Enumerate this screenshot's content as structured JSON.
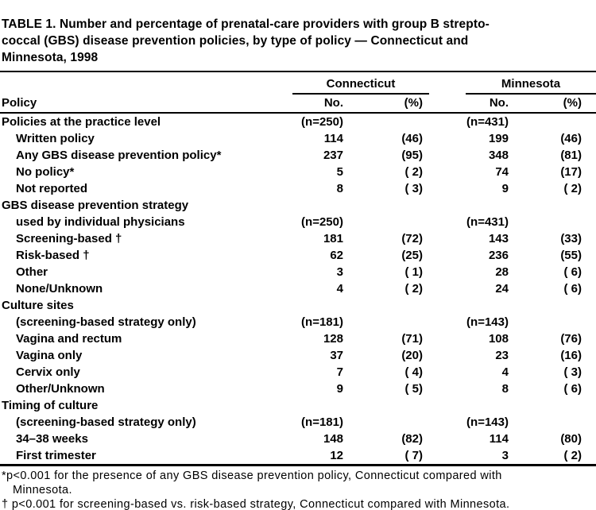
{
  "page": {
    "background": "#ffffff",
    "text_color": "#000000",
    "rule_color": "#000000"
  },
  "table": {
    "title_lines": [
      "TABLE 1. Number and percentage of prenatal-care providers with group B strepto-",
      "coccal (GBS) disease prevention policies, by type of policy — Connecticut and",
      "Minnesota, 1998"
    ],
    "column_groups": {
      "connecticut": "Connecticut",
      "minnesota": "Minnesota"
    },
    "header": {
      "policy": "Policy",
      "no": "No.",
      "pct": "(%)"
    },
    "rows": [
      {
        "label": "Policies at the practice level",
        "indent": false,
        "ct_no": "(n=250)",
        "ct_pct": "",
        "mn_no": "(n=431)",
        "mn_pct": ""
      },
      {
        "label": "Written policy",
        "indent": true,
        "ct_no": "114",
        "ct_pct": "(46)",
        "mn_no": "199",
        "mn_pct": "(46)"
      },
      {
        "label": "Any GBS disease prevention policy*",
        "indent": true,
        "ct_no": "237",
        "ct_pct": "(95)",
        "mn_no": "348",
        "mn_pct": "(81)"
      },
      {
        "label": "No policy*",
        "indent": true,
        "ct_no": "5",
        "ct_pct": "( 2)",
        "mn_no": "74",
        "mn_pct": "(17)"
      },
      {
        "label": "Not reported",
        "indent": true,
        "ct_no": "8",
        "ct_pct": "( 3)",
        "mn_no": "9",
        "mn_pct": "( 2)"
      },
      {
        "label": "GBS disease prevention strategy",
        "indent": false,
        "ct_no": "",
        "ct_pct": "",
        "mn_no": "",
        "mn_pct": ""
      },
      {
        "label": "used by individual physicians",
        "indent": true,
        "ct_no": "(n=250)",
        "ct_pct": "",
        "mn_no": "(n=431)",
        "mn_pct": ""
      },
      {
        "label": "Screening-based †",
        "indent": true,
        "ct_no": "181",
        "ct_pct": "(72)",
        "mn_no": "143",
        "mn_pct": "(33)"
      },
      {
        "label": "Risk-based †",
        "indent": true,
        "ct_no": "62",
        "ct_pct": "(25)",
        "mn_no": "236",
        "mn_pct": "(55)"
      },
      {
        "label": "Other",
        "indent": true,
        "ct_no": "3",
        "ct_pct": "( 1)",
        "mn_no": "28",
        "mn_pct": "( 6)"
      },
      {
        "label": "None/Unknown",
        "indent": true,
        "ct_no": "4",
        "ct_pct": "( 2)",
        "mn_no": "24",
        "mn_pct": "( 6)"
      },
      {
        "label": "Culture sites",
        "indent": false,
        "ct_no": "",
        "ct_pct": "",
        "mn_no": "",
        "mn_pct": ""
      },
      {
        "label": "(screening-based strategy only)",
        "indent": true,
        "ct_no": "(n=181)",
        "ct_pct": "",
        "mn_no": "(n=143)",
        "mn_pct": ""
      },
      {
        "label": "Vagina and rectum",
        "indent": true,
        "ct_no": "128",
        "ct_pct": "(71)",
        "mn_no": "108",
        "mn_pct": "(76)"
      },
      {
        "label": "Vagina only",
        "indent": true,
        "ct_no": "37",
        "ct_pct": "(20)",
        "mn_no": "23",
        "mn_pct": "(16)"
      },
      {
        "label": "Cervix only",
        "indent": true,
        "ct_no": "7",
        "ct_pct": "( 4)",
        "mn_no": "4",
        "mn_pct": "( 3)"
      },
      {
        "label": "Other/Unknown",
        "indent": true,
        "ct_no": "9",
        "ct_pct": "( 5)",
        "mn_no": "8",
        "mn_pct": "( 6)"
      },
      {
        "label": "Timing of culture",
        "indent": false,
        "ct_no": "",
        "ct_pct": "",
        "mn_no": "",
        "mn_pct": ""
      },
      {
        "label": "(screening-based strategy only)",
        "indent": true,
        "ct_no": "(n=181)",
        "ct_pct": "",
        "mn_no": "(n=143)",
        "mn_pct": ""
      },
      {
        "label": "34–38 weeks",
        "indent": true,
        "ct_no": "148",
        "ct_pct": "(82)",
        "mn_no": "114",
        "mn_pct": "(80)"
      },
      {
        "label": "First trimester",
        "indent": true,
        "ct_no": "12",
        "ct_pct": "( 7)",
        "mn_no": "3",
        "mn_pct": "( 2)"
      }
    ],
    "footnotes": {
      "line1": "*p<0.001 for the presence of any GBS disease prevention policy, Connecticut compared with",
      "line2": "Minnesota.",
      "line3": "† p<0.001 for screening-based vs. risk-based strategy, Connecticut compared with Minnesota."
    }
  }
}
